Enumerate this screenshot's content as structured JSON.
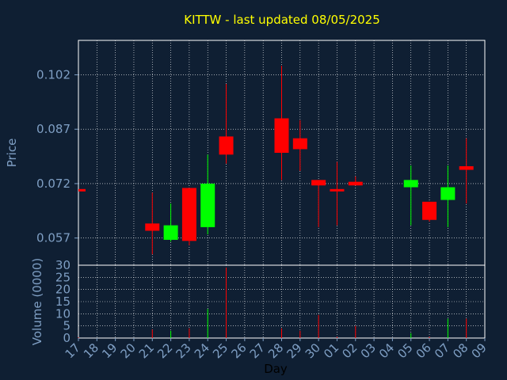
{
  "title": "KITTW - last updated 08/05/2025",
  "colors": {
    "background": "#0f1f33",
    "up": "#00ff00",
    "down": "#ff0000",
    "grid": "#ffffff",
    "axis": "#7f9fc4",
    "title": "#ffff00"
  },
  "chart_data": [
    {
      "type": "candlestick",
      "ylabel": "Price",
      "xlabel": "",
      "yticks": [
        "0.102",
        "0.087",
        "0.072",
        "0.057"
      ],
      "ylim": [
        0.0495,
        0.1115
      ],
      "grid": true,
      "x": [
        "17",
        "18",
        "19",
        "20",
        "21",
        "22",
        "23",
        "24",
        "25",
        "26",
        "27",
        "28",
        "29",
        "30",
        "01",
        "02",
        "03",
        "04",
        "05",
        "06",
        "07",
        "08",
        "09"
      ],
      "candles": [
        {
          "day": "17",
          "open": 0.0705,
          "high": 0.0705,
          "low": 0.0705,
          "close": 0.0705
        },
        {
          "day": "21",
          "open": 0.061,
          "high": 0.0695,
          "low": 0.0525,
          "close": 0.059
        },
        {
          "day": "22",
          "open": 0.0565,
          "high": 0.0665,
          "low": 0.056,
          "close": 0.0605
        },
        {
          "day": "23",
          "open": 0.0708,
          "high": 0.0708,
          "low": 0.055,
          "close": 0.0562
        },
        {
          "day": "24",
          "open": 0.06,
          "high": 0.08,
          "low": 0.058,
          "close": 0.072
        },
        {
          "day": "25",
          "open": 0.085,
          "high": 0.0995,
          "low": 0.0775,
          "close": 0.08
        },
        {
          "day": "28",
          "open": 0.09,
          "high": 0.1045,
          "low": 0.073,
          "close": 0.0805
        },
        {
          "day": "29",
          "open": 0.0845,
          "high": 0.0895,
          "low": 0.0755,
          "close": 0.0815
        },
        {
          "day": "30",
          "open": 0.073,
          "high": 0.073,
          "low": 0.06,
          "close": 0.0715
        },
        {
          "day": "01",
          "open": 0.0705,
          "high": 0.078,
          "low": 0.0605,
          "close": 0.0705
        },
        {
          "day": "02",
          "open": 0.0725,
          "high": 0.074,
          "low": 0.0715,
          "close": 0.0715
        },
        {
          "day": "05",
          "open": 0.071,
          "high": 0.077,
          "low": 0.0605,
          "close": 0.073
        },
        {
          "day": "06",
          "open": 0.067,
          "high": 0.067,
          "low": 0.0615,
          "close": 0.062
        },
        {
          "day": "07",
          "open": 0.0675,
          "high": 0.077,
          "low": 0.06,
          "close": 0.071
        },
        {
          "day": "08",
          "open": 0.0768,
          "high": 0.0845,
          "low": 0.0665,
          "close": 0.0758
        }
      ]
    },
    {
      "type": "bar",
      "ylabel": "Volume (0000)",
      "xlabel": "Day",
      "yticks": [
        "30",
        "25",
        "20",
        "15",
        "10",
        "5",
        "0"
      ],
      "ylim": [
        0,
        30
      ],
      "grid": true,
      "categories": [
        "17",
        "21",
        "22",
        "23",
        "24",
        "25",
        "28",
        "29",
        "30",
        "01",
        "02",
        "05",
        "06",
        "07",
        "08"
      ],
      "values": [
        0.3,
        3.5,
        3.0,
        4.0,
        12.0,
        29.0,
        4.0,
        3.0,
        9.5,
        0.5,
        5.0,
        2.0,
        0.5,
        8.0,
        8.0
      ],
      "direction": [
        "flat",
        "down",
        "up",
        "down",
        "up",
        "down",
        "down",
        "down",
        "down",
        "flat",
        "down",
        "up",
        "down",
        "up",
        "down"
      ]
    }
  ]
}
